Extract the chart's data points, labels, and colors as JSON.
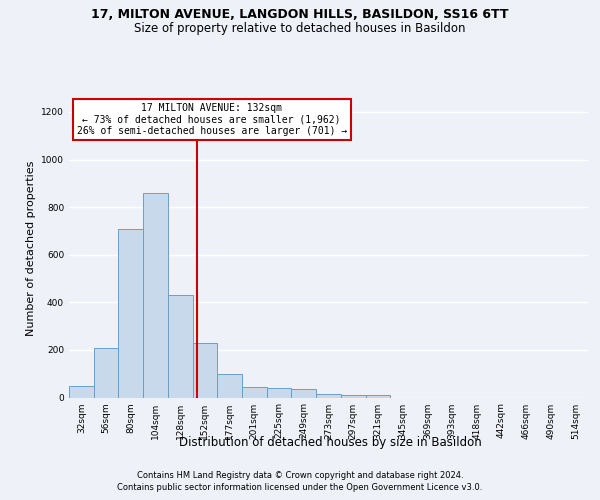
{
  "title1": "17, MILTON AVENUE, LANGDON HILLS, BASILDON, SS16 6TT",
  "title2": "Size of property relative to detached houses in Basildon",
  "xlabel": "Distribution of detached houses by size in Basildon",
  "ylabel": "Number of detached properties",
  "categories": [
    "32sqm",
    "56sqm",
    "80sqm",
    "104sqm",
    "128sqm",
    "152sqm",
    "177sqm",
    "201sqm",
    "225sqm",
    "249sqm",
    "273sqm",
    "297sqm",
    "321sqm",
    "345sqm",
    "369sqm",
    "393sqm",
    "418sqm",
    "442sqm",
    "466sqm",
    "490sqm",
    "514sqm"
  ],
  "values": [
    50,
    210,
    710,
    860,
    430,
    230,
    100,
    45,
    40,
    35,
    15,
    10,
    10,
    0,
    0,
    0,
    0,
    0,
    0,
    0,
    0
  ],
  "bar_color": "#c9d9ec",
  "bar_edge_color": "#6a9fcb",
  "red_line_x": 4.67,
  "annotation_text": "17 MILTON AVENUE: 132sqm\n← 73% of detached houses are smaller (1,962)\n26% of semi-detached houses are larger (701) →",
  "annotation_box_color": "#ffffff",
  "annotation_box_edge": "#cc0000",
  "ylim": [
    0,
    1250
  ],
  "yticks": [
    0,
    200,
    400,
    600,
    800,
    1000,
    1200
  ],
  "footer1": "Contains HM Land Registry data © Crown copyright and database right 2024.",
  "footer2": "Contains public sector information licensed under the Open Government Licence v3.0.",
  "bg_color": "#eef2f8",
  "grid_color": "#ffffff",
  "title1_fontsize": 9,
  "title2_fontsize": 8.5,
  "ylabel_fontsize": 8,
  "xlabel_fontsize": 8.5,
  "tick_fontsize": 6.5,
  "ann_fontsize": 7,
  "footer_fontsize": 6
}
